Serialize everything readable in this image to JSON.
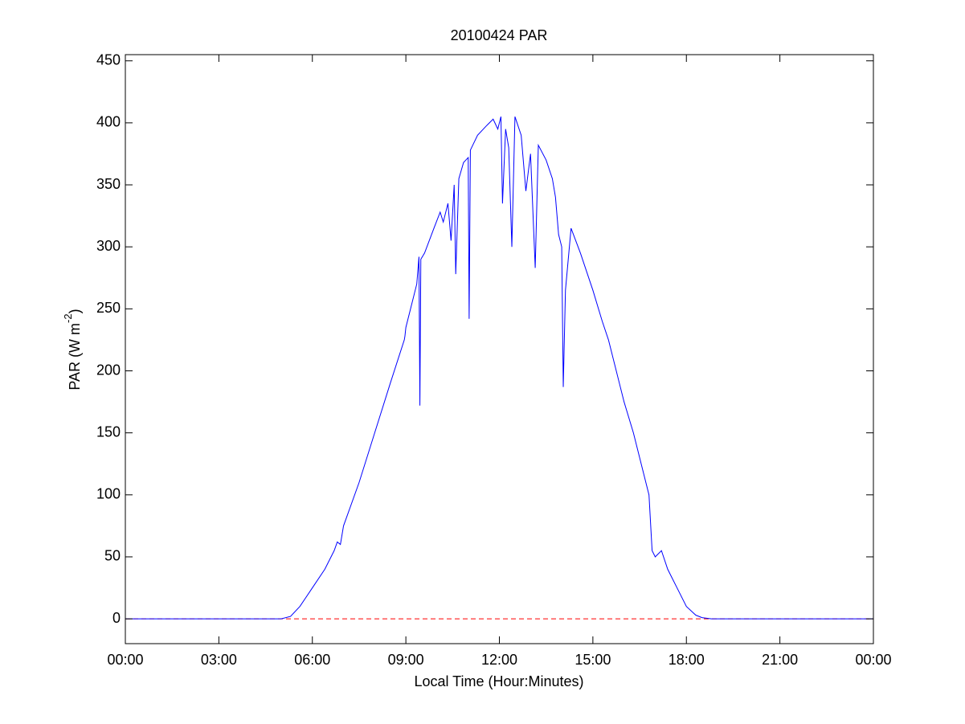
{
  "chart_data": {
    "type": "line",
    "title": "20100424 PAR",
    "xlabel": "Local Time (Hour:Minutes)",
    "ylabel": [
      "PAR (W m",
      "-2",
      ")"
    ],
    "x": [
      0,
      5.0,
      5.3,
      5.6,
      6.0,
      6.4,
      6.7,
      6.8,
      6.9,
      7.0,
      7.5,
      8.0,
      8.5,
      8.95,
      8.97,
      9.0,
      9.2,
      9.35,
      9.42,
      9.45,
      9.48,
      9.6,
      9.9,
      10.1,
      10.2,
      10.35,
      10.45,
      10.55,
      10.6,
      10.7,
      10.85,
      11.0,
      11.03,
      11.07,
      11.3,
      11.6,
      11.8,
      11.95,
      12.05,
      12.1,
      12.2,
      12.3,
      12.4,
      12.5,
      12.7,
      12.85,
      13.0,
      13.15,
      13.25,
      13.5,
      13.7,
      13.8,
      13.9,
      14.0,
      14.05,
      14.12,
      14.3,
      14.6,
      15.0,
      15.3,
      15.5,
      15.7,
      15.85,
      16.0,
      16.3,
      16.6,
      16.8,
      16.9,
      17.0,
      17.2,
      17.4,
      17.5,
      17.7,
      18.0,
      18.3,
      18.5,
      18.8,
      24
    ],
    "values": [
      0,
      0,
      2,
      10,
      25,
      40,
      55,
      62,
      60,
      75,
      110,
      150,
      190,
      225,
      228,
      235,
      255,
      270,
      292,
      172,
      290,
      295,
      315,
      328,
      320,
      335,
      305,
      350,
      278,
      355,
      368,
      372,
      242,
      378,
      390,
      398,
      403,
      395,
      405,
      335,
      395,
      380,
      300,
      405,
      390,
      345,
      375,
      283,
      382,
      370,
      355,
      340,
      310,
      300,
      187,
      265,
      315,
      295,
      265,
      240,
      225,
      205,
      190,
      175,
      150,
      120,
      100,
      55,
      50,
      55,
      40,
      35,
      25,
      10,
      3,
      1,
      0,
      0
    ],
    "color": "#0000ff",
    "hline": {
      "y": 0,
      "color": "#ff0000",
      "style": "dashed"
    },
    "xlim": [
      0,
      24
    ],
    "xticks": [
      {
        "value": 0,
        "label": "00:00"
      },
      {
        "value": 3,
        "label": "03:00"
      },
      {
        "value": 6,
        "label": "06:00"
      },
      {
        "value": 9,
        "label": "09:00"
      },
      {
        "value": 12,
        "label": "12:00"
      },
      {
        "value": 15,
        "label": "15:00"
      },
      {
        "value": 18,
        "label": "18:00"
      },
      {
        "value": 21,
        "label": "21:00"
      },
      {
        "value": 24,
        "label": "00:00"
      }
    ],
    "ylim": [
      -20,
      455
    ],
    "yticks": [
      0,
      50,
      100,
      150,
      200,
      250,
      300,
      350,
      400,
      450
    ]
  }
}
